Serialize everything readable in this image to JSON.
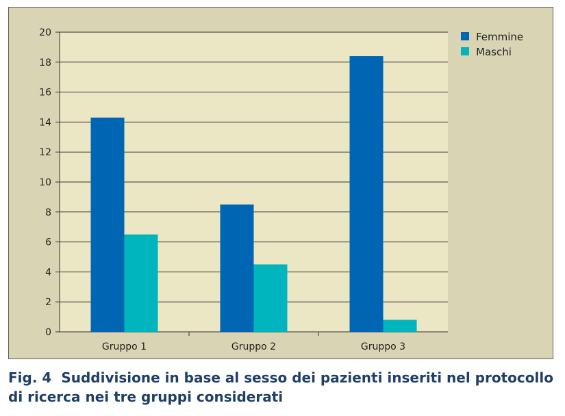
{
  "chart_data": {
    "type": "bar",
    "categories": [
      "Gruppo 1",
      "Gruppo 2",
      "Gruppo 3"
    ],
    "series": [
      {
        "name": "Femmine",
        "values": [
          14.3,
          8.5,
          18.4
        ],
        "color": "#0066b3"
      },
      {
        "name": "Maschi",
        "values": [
          6.5,
          4.5,
          0.8
        ],
        "color": "#00b5bd"
      }
    ],
    "ylim": [
      0,
      20
    ],
    "yticks": [
      "0",
      "2",
      "4",
      "6",
      "8",
      "10",
      "12",
      "14",
      "16",
      "18",
      "20"
    ],
    "grid": true,
    "legend_position": "top-right",
    "plot_background": "#ebe6c3",
    "frame_background": "#d9d4b4"
  },
  "caption": {
    "label": "Fig. 4",
    "text": "Suddivisione in base al sesso dei pazienti inseriti nel protocollo di ricerca nei tre gruppi considerati"
  }
}
